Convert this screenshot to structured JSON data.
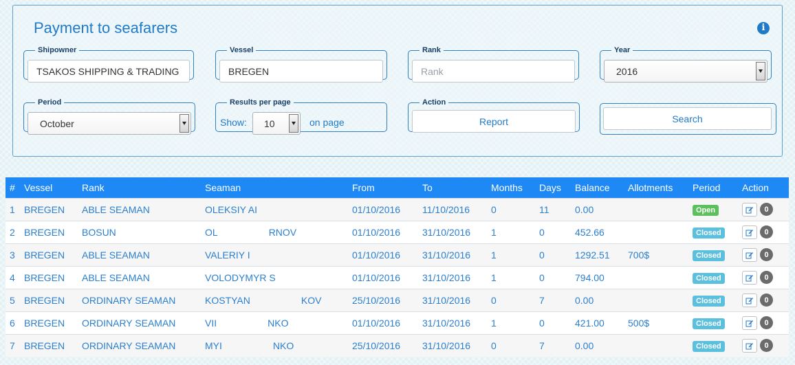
{
  "panel": {
    "title": "Payment to seafarers",
    "info_icon": "i"
  },
  "filters": {
    "shipowner": {
      "legend": "Shipowner",
      "value": "TSAKOS SHIPPING & TRADING"
    },
    "vessel": {
      "legend": "Vessel",
      "value": "BREGEN"
    },
    "rank": {
      "legend": "Rank",
      "value": "",
      "placeholder": "Rank"
    },
    "year": {
      "legend": "Year",
      "value": "2016"
    },
    "period": {
      "legend": "Period",
      "value": "October"
    },
    "results": {
      "legend": "Results per page",
      "show_label": "Show:",
      "value": "10",
      "suffix": "on page"
    },
    "action": {
      "legend": "Action",
      "button": "Report"
    },
    "search": {
      "button": "Search"
    }
  },
  "table": {
    "headers": [
      "#",
      "Vessel",
      "Rank",
      "Seaman",
      "From",
      "To",
      "Months",
      "Days",
      "Balance",
      "Allotments",
      "Period",
      "Action"
    ],
    "rows": [
      {
        "num": "1",
        "vessel": "BREGEN",
        "rank": "ABLE SEAMAN",
        "seaman_a": "OLEKSIY AI",
        "seaman_b": "",
        "from": "01/10/2016",
        "to": "11/10/2016",
        "months": "0",
        "days": "11",
        "balance": "0.00",
        "allotments": "",
        "period": "Open",
        "count": "0"
      },
      {
        "num": "2",
        "vessel": "BREGEN",
        "rank": "BOSUN",
        "seaman_a": "OL",
        "seaman_b": "RNOV",
        "from": "01/10/2016",
        "to": "31/10/2016",
        "months": "1",
        "days": "0",
        "balance": "452.66",
        "allotments": "",
        "period": "Closed",
        "count": "0"
      },
      {
        "num": "3",
        "vessel": "BREGEN",
        "rank": "ABLE SEAMAN",
        "seaman_a": "VALERIY I",
        "seaman_b": "",
        "from": "01/10/2016",
        "to": "31/10/2016",
        "months": "1",
        "days": "0",
        "balance": "1292.51",
        "allotments": "700$",
        "period": "Closed",
        "count": "0"
      },
      {
        "num": "4",
        "vessel": "BREGEN",
        "rank": "ABLE SEAMAN",
        "seaman_a": "VOLODYMYR S",
        "seaman_b": "",
        "from": "01/10/2016",
        "to": "31/10/2016",
        "months": "1",
        "days": "0",
        "balance": "794.00",
        "allotments": "",
        "period": "Closed",
        "count": "0"
      },
      {
        "num": "5",
        "vessel": "BREGEN",
        "rank": "ORDINARY SEAMAN",
        "seaman_a": "KOSTYAN",
        "seaman_b": "KOV",
        "from": "25/10/2016",
        "to": "31/10/2016",
        "months": "0",
        "days": "7",
        "balance": "0.00",
        "allotments": "",
        "period": "Closed",
        "count": "0"
      },
      {
        "num": "6",
        "vessel": "BREGEN",
        "rank": "ORDINARY SEAMAN",
        "seaman_a": "VII",
        "seaman_b": "NKO",
        "from": "01/10/2016",
        "to": "31/10/2016",
        "months": "1",
        "days": "0",
        "balance": "421.00",
        "allotments": "500$",
        "period": "Closed",
        "count": "0"
      },
      {
        "num": "7",
        "vessel": "BREGEN",
        "rank": "ORDINARY SEAMAN",
        "seaman_a": "MYI",
        "seaman_b": "NKO",
        "from": "25/10/2016",
        "to": "31/10/2016",
        "months": "0",
        "days": "7",
        "balance": "0.00",
        "allotments": "",
        "period": "Closed",
        "count": "0"
      }
    ]
  },
  "colors": {
    "accent": "#1f7ac8",
    "header_bg": "#1e88f5",
    "open_badge": "#5cc05c",
    "closed_badge": "#5bc0de"
  },
  "icons": {
    "info": "info-icon",
    "edit": "edit-icon",
    "dropdown": "chevron-down-icon"
  }
}
